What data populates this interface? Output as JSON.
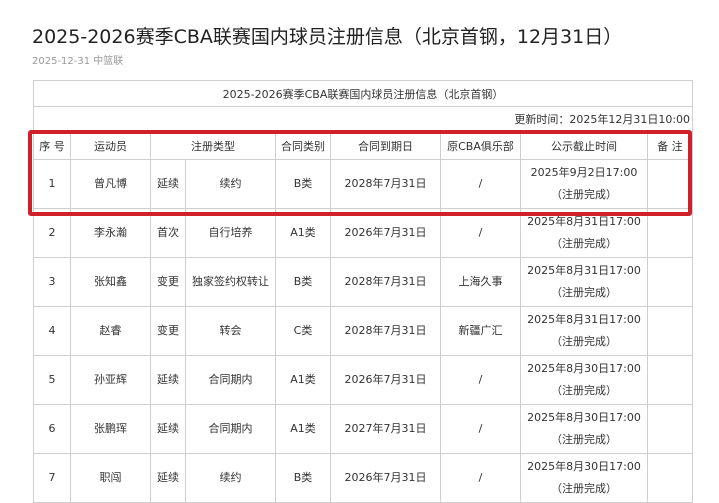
{
  "article": {
    "title": "2025-2026赛季CBA联赛国内球员注册信息（北京首钢，12月31日）",
    "meta": "2025-12-31 中篮联"
  },
  "table": {
    "caption": "2025-2026赛季CBA联赛国内球员注册信息（北京首钢）",
    "updated": "更新时间：2025年12月31日10:00",
    "headers": [
      "序 号",
      "运动员",
      "注册类型",
      "合同类别",
      "合同到期日",
      "原CBA俱乐部",
      "公示截止时间",
      "备 注"
    ],
    "rows": [
      [
        "1",
        "曾凡博",
        "延续",
        "续约",
        "B类",
        "2028年7月31日",
        "/",
        "2025年9月2日17:00",
        "（注册完成）",
        ""
      ],
      [
        "2",
        "李永瀚",
        "首次",
        "自行培养",
        "A1类",
        "2026年7月31日",
        "/",
        "2025年8月31日17:00",
        "（注册完成）",
        ""
      ],
      [
        "3",
        "张知鑫",
        "变更",
        "独家签约权转让",
        "B类",
        "2028年7月31日",
        "上海久事",
        "2025年8月31日17:00",
        "（注册完成）",
        ""
      ],
      [
        "4",
        "赵睿",
        "变更",
        "转会",
        "C类",
        "2028年7月31日",
        "新疆广汇",
        "2025年8月31日17:00",
        "（注册完成）",
        ""
      ],
      [
        "5",
        "孙亚辉",
        "延续",
        "合同期内",
        "A1类",
        "2026年7月31日",
        "/",
        "2025年8月30日17:00",
        "（注册完成）",
        ""
      ],
      [
        "6",
        "张鹏珲",
        "延续",
        "合同期内",
        "A1类",
        "2027年7月31日",
        "/",
        "2025年8月30日17:00",
        "（注册完成）",
        ""
      ],
      [
        "7",
        "职闯",
        "延续",
        "续约",
        "B类",
        "2026年7月31日",
        "/",
        "2025年8月30日17:00",
        "（注册完成）",
        ""
      ]
    ]
  },
  "highlight_color": "#d0202a"
}
